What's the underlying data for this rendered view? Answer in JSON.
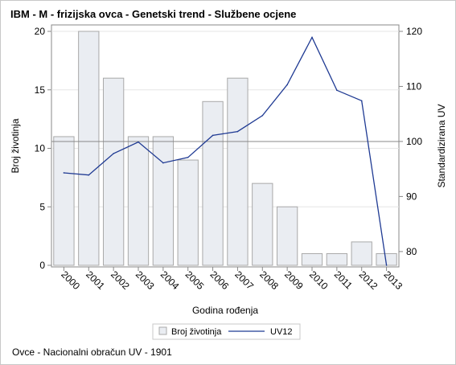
{
  "title": "IBM - M - frizijska ovca - Genetski trend - Službene ocjene",
  "footnote": "Ovce - Nacionalni obračun UV - 1901",
  "chart_data": {
    "type": "bar",
    "categories": [
      "2000",
      "2001",
      "2002",
      "2003",
      "2004",
      "2005",
      "2006",
      "2007",
      "2008",
      "2009",
      "2010",
      "2011",
      "2012",
      "2013"
    ],
    "series": [
      {
        "name": "Broj životinja",
        "type": "bar",
        "axis": "left",
        "values": [
          11,
          20,
          16,
          11,
          11,
          9,
          14,
          16,
          7,
          5,
          1,
          1,
          2,
          1
        ]
      },
      {
        "name": "UV12",
        "type": "line",
        "axis": "right",
        "values": [
          94.3,
          93.9,
          97.8,
          99.9,
          96.1,
          97.1,
          101.1,
          101.8,
          104.7,
          110.3,
          118.9,
          109.3,
          107.4,
          77.5
        ]
      }
    ],
    "xlabel": "Godina rođenja",
    "ylabel": "Broj životinja",
    "y2label": "Standardizirana UV",
    "ylim": [
      0,
      20
    ],
    "y2lim": [
      77.5,
      120
    ],
    "yticks": [
      0,
      5,
      10,
      15,
      20
    ],
    "y2ticks": [
      80,
      90,
      100,
      110,
      120
    ],
    "reference_line_y2": 100,
    "grid": true,
    "legend_position": "bottom",
    "colors": {
      "bar_fill": "#eaedf2",
      "bar_stroke": "#a9a9a9",
      "line": "#1f3a93",
      "grid": "#e6e6e6",
      "axis": "#888888",
      "reference": "#888888"
    }
  }
}
